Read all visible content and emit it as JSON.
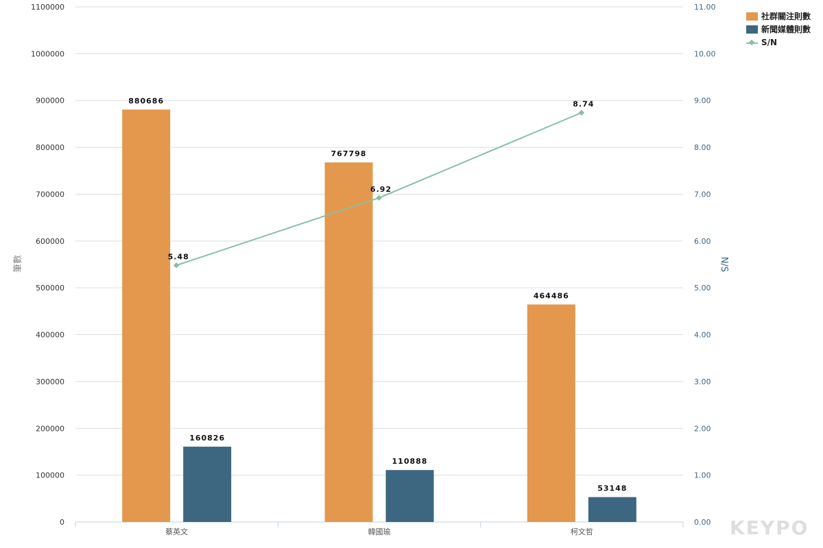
{
  "chart_data": {
    "type": "bar",
    "categories": [
      "蔡英文",
      "韓國瑜",
      "柯文哲"
    ],
    "series": [
      {
        "name": "社群關注則數",
        "type": "bar",
        "axis": "left",
        "color": "#e4984d",
        "values": [
          880686,
          767798,
          464486
        ]
      },
      {
        "name": "新聞媒體則數",
        "type": "bar",
        "axis": "left",
        "color": "#3d6680",
        "values": [
          160826,
          110888,
          53148
        ]
      },
      {
        "name": "S/N",
        "type": "line",
        "axis": "right",
        "color": "#86c0a6",
        "values": [
          5.48,
          6.92,
          8.74
        ]
      }
    ],
    "data_labels": {
      "bars": [
        [
          "880686",
          "767798",
          "464486"
        ],
        [
          "160826",
          "110888",
          "53148"
        ]
      ],
      "line": [
        "5.48",
        "6.92",
        "8.74"
      ]
    },
    "ylabel": "筆數",
    "ylabel_right": "N/S",
    "ylim": [
      0,
      1100000
    ],
    "ylim_right": [
      0,
      11
    ],
    "yticks": [
      "0",
      "100000",
      "200000",
      "300000",
      "400000",
      "500000",
      "600000",
      "700000",
      "800000",
      "900000",
      "1000000",
      "1100000"
    ],
    "yticks_right": [
      "0.00",
      "1.00",
      "2.00",
      "3.00",
      "4.00",
      "5.00",
      "6.00",
      "7.00",
      "8.00",
      "9.00",
      "10.00",
      "11.00"
    ],
    "grid": true,
    "legend_position": "top-right"
  },
  "legend": [
    {
      "label": "社群關注則數",
      "color": "#e4984d",
      "kind": "bar"
    },
    {
      "label": "新聞媒體則數",
      "color": "#3d6680",
      "kind": "bar"
    },
    {
      "label": "S/N",
      "color": "#86c0a6",
      "kind": "line"
    }
  ],
  "watermark": "KEYPO"
}
